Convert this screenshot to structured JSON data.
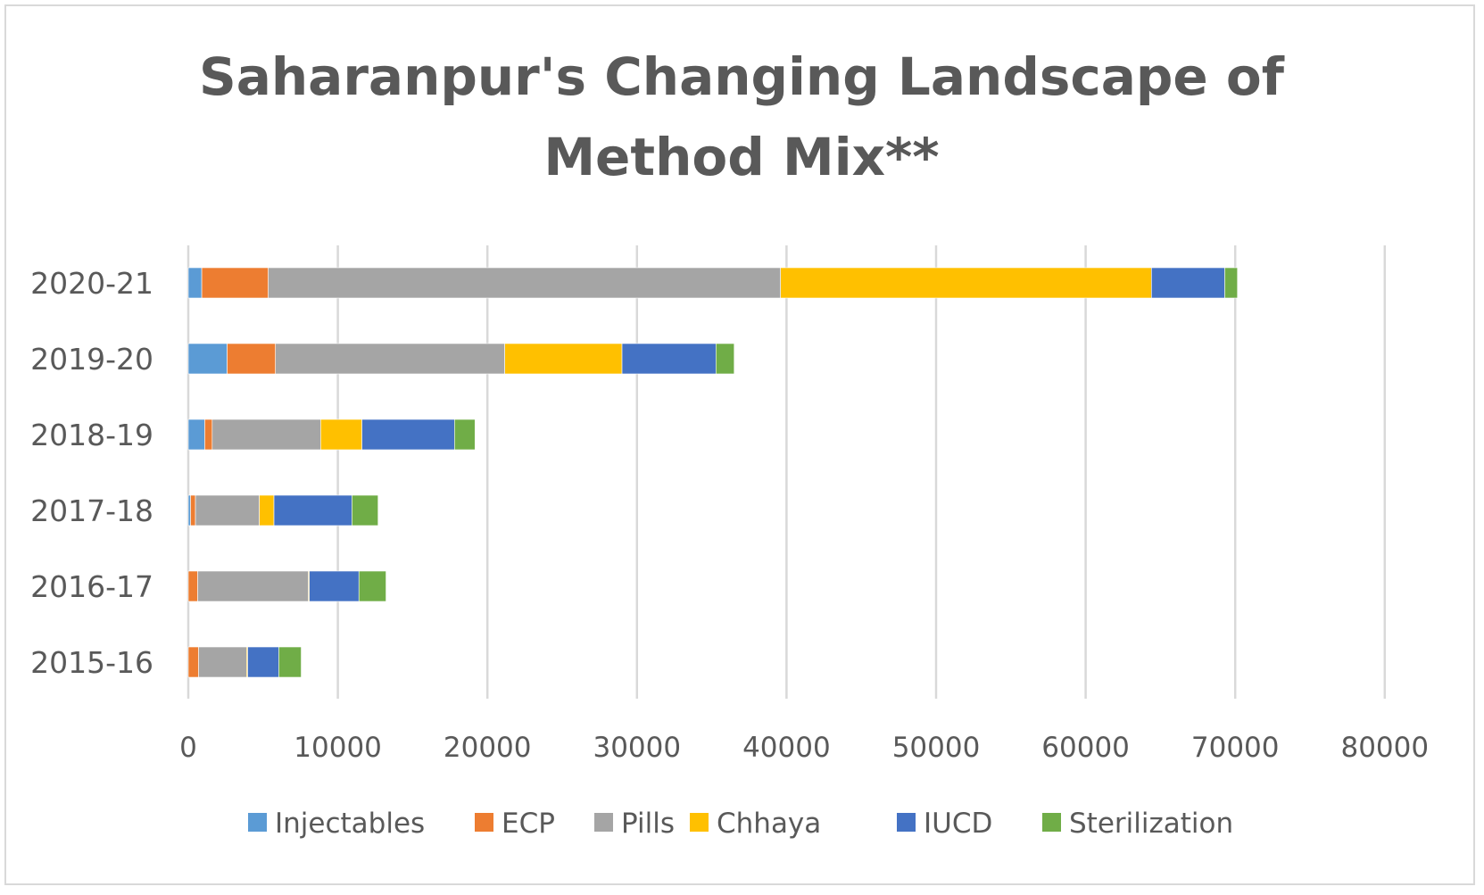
{
  "chart_data": {
    "type": "bar",
    "orientation": "horizontal",
    "stacked": true,
    "title": "Saharanpur's Changing Landscape of Method Mix**",
    "title_lines": [
      "Saharanpur's Changing Landscape of",
      "Method Mix**"
    ],
    "xlabel": "",
    "ylabel": "",
    "xlim": [
      0,
      80000
    ],
    "x_ticks": [
      "0",
      "10000",
      "20000",
      "30000",
      "40000",
      "50000",
      "60000",
      "70000",
      "80000"
    ],
    "x_tick_values": [
      0,
      10000,
      20000,
      30000,
      40000,
      50000,
      60000,
      70000,
      80000
    ],
    "grid": true,
    "legend_position": "bottom",
    "categories": [
      "2020-21",
      "2019-20",
      "2018-19",
      "2017-18",
      "2016-17",
      "2015-16"
    ],
    "series": [
      {
        "name": "Injectables",
        "color": "#5b9bd5",
        "values": [
          900,
          2600,
          1100,
          150,
          0,
          0
        ]
      },
      {
        "name": "ECP",
        "color": "#ed7d31",
        "values": [
          4450,
          3230,
          500,
          330,
          630,
          690
        ]
      },
      {
        "name": "Pills",
        "color": "#a5a5a5",
        "values": [
          34250,
          15330,
          7250,
          4270,
          7400,
          3210
        ]
      },
      {
        "name": "Chhaya",
        "color": "#ffc000",
        "values": [
          24800,
          7840,
          2760,
          980,
          60,
          70
        ]
      },
      {
        "name": "IUCD",
        "color": "#4472c4",
        "values": [
          4900,
          6280,
          6190,
          5210,
          3320,
          2080
        ]
      },
      {
        "name": "Sterilization",
        "color": "#70ad47",
        "values": [
          850,
          1220,
          1370,
          1750,
          1810,
          1500
        ]
      }
    ]
  }
}
